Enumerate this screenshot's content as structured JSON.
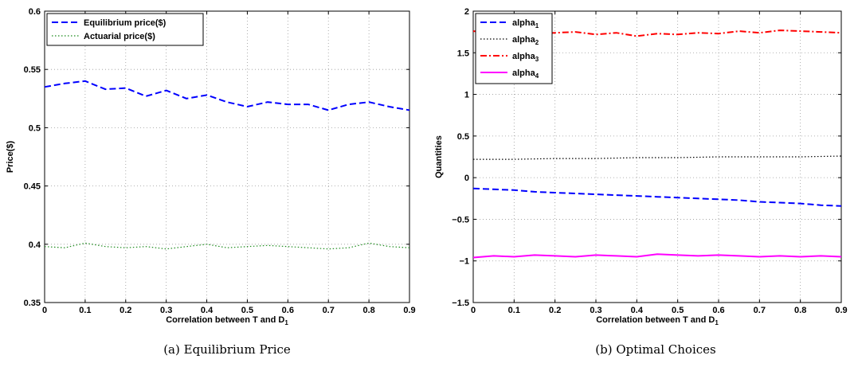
{
  "chart_data": [
    {
      "type": "line",
      "caption": "(a) Equilibrium Price",
      "xlabel": "Correlation between T and D",
      "xlabel_sub": "1",
      "ylabel": "Price($)",
      "xlim": [
        0,
        0.9
      ],
      "ylim": [
        0.35,
        0.6
      ],
      "xticks": [
        "0",
        "0.1",
        "0.2",
        "0.3",
        "0.4",
        "0.5",
        "0.6",
        "0.7",
        "0.8",
        "0.9"
      ],
      "yticks": [
        "0.35",
        "0.4",
        "0.45",
        "0.5",
        "0.55",
        "0.6"
      ],
      "grid": true,
      "legend_position": "top-left",
      "series": [
        {
          "name": "Equilibrium price($)",
          "color": "#0000ff",
          "style": "dashed",
          "x": [
            0,
            0.05,
            0.1,
            0.15,
            0.2,
            0.25,
            0.3,
            0.35,
            0.4,
            0.45,
            0.5,
            0.55,
            0.6,
            0.65,
            0.7,
            0.75,
            0.8,
            0.85,
            0.9
          ],
          "y": [
            0.535,
            0.538,
            0.54,
            0.533,
            0.534,
            0.527,
            0.532,
            0.525,
            0.528,
            0.522,
            0.518,
            0.522,
            0.52,
            0.52,
            0.515,
            0.52,
            0.522,
            0.518,
            0.515
          ]
        },
        {
          "name": "Actuarial price($)",
          "color": "#1a8a1a",
          "style": "dotted",
          "x": [
            0,
            0.05,
            0.1,
            0.15,
            0.2,
            0.25,
            0.3,
            0.35,
            0.4,
            0.45,
            0.5,
            0.55,
            0.6,
            0.65,
            0.7,
            0.75,
            0.8,
            0.85,
            0.9
          ],
          "y": [
            0.398,
            0.397,
            0.401,
            0.398,
            0.397,
            0.398,
            0.396,
            0.398,
            0.4,
            0.397,
            0.398,
            0.399,
            0.398,
            0.397,
            0.396,
            0.397,
            0.401,
            0.398,
            0.397
          ]
        }
      ]
    },
    {
      "type": "line",
      "caption": "(b) Optimal Choices",
      "xlabel": "Correlation between T and D",
      "xlabel_sub": "1",
      "ylabel": "Quantities",
      "xlim": [
        0,
        0.9
      ],
      "ylim": [
        -1.5,
        2
      ],
      "xticks": [
        "0",
        "0.1",
        "0.2",
        "0.3",
        "0.4",
        "0.5",
        "0.6",
        "0.7",
        "0.8",
        "0.9"
      ],
      "yticks": [
        "−1.5",
        "−1",
        "−0.5",
        "0",
        "0.5",
        "1",
        "1.5",
        "2"
      ],
      "grid": true,
      "legend_position": "top-left",
      "series": [
        {
          "name": "alpha",
          "name_sub": "1",
          "color": "#0000ff",
          "style": "dashed",
          "x": [
            0,
            0.05,
            0.1,
            0.15,
            0.2,
            0.25,
            0.3,
            0.35,
            0.4,
            0.45,
            0.5,
            0.55,
            0.6,
            0.65,
            0.7,
            0.75,
            0.8,
            0.85,
            0.9
          ],
          "y": [
            -0.13,
            -0.14,
            -0.15,
            -0.17,
            -0.18,
            -0.19,
            -0.2,
            -0.21,
            -0.22,
            -0.23,
            -0.24,
            -0.25,
            -0.26,
            -0.27,
            -0.29,
            -0.3,
            -0.31,
            -0.33,
            -0.34
          ]
        },
        {
          "name": "alpha",
          "name_sub": "2",
          "color": "#000000",
          "style": "dotted",
          "x": [
            0,
            0.1,
            0.2,
            0.3,
            0.4,
            0.5,
            0.6,
            0.7,
            0.8,
            0.9
          ],
          "y": [
            0.22,
            0.22,
            0.23,
            0.23,
            0.24,
            0.24,
            0.25,
            0.25,
            0.25,
            0.26
          ]
        },
        {
          "name": "alpha",
          "name_sub": "3",
          "color": "#ff0000",
          "style": "dashdot",
          "x": [
            0,
            0.05,
            0.1,
            0.15,
            0.2,
            0.25,
            0.3,
            0.35,
            0.4,
            0.45,
            0.5,
            0.55,
            0.6,
            0.65,
            0.7,
            0.75,
            0.8,
            0.85,
            0.9
          ],
          "y": [
            1.76,
            1.74,
            1.75,
            1.73,
            1.74,
            1.75,
            1.72,
            1.74,
            1.7,
            1.73,
            1.72,
            1.74,
            1.73,
            1.76,
            1.74,
            1.77,
            1.76,
            1.75,
            1.74
          ]
        },
        {
          "name": "alpha",
          "name_sub": "4",
          "color": "#ff00ff",
          "style": "solid",
          "x": [
            0,
            0.05,
            0.1,
            0.15,
            0.2,
            0.25,
            0.3,
            0.35,
            0.4,
            0.45,
            0.5,
            0.55,
            0.6,
            0.65,
            0.7,
            0.75,
            0.8,
            0.85,
            0.9
          ],
          "y": [
            -0.96,
            -0.94,
            -0.95,
            -0.93,
            -0.94,
            -0.95,
            -0.93,
            -0.94,
            -0.95,
            -0.92,
            -0.93,
            -0.94,
            -0.93,
            -0.94,
            -0.95,
            -0.94,
            -0.95,
            -0.94,
            -0.95
          ]
        }
      ]
    }
  ]
}
